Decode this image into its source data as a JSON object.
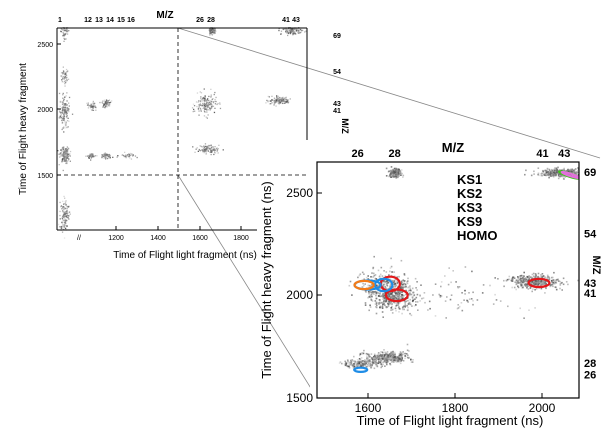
{
  "chart_data": [
    {
      "type": "scatter",
      "panel": "overview",
      "xlabel": "Time of Flight light fragment (ns)",
      "ylabel": "Time of Flight heavy fragment",
      "top_axis_label": "M/Z",
      "right_axis_label": "M/Z",
      "x_ticks": [
        "1200",
        "1400",
        "1600",
        "1800"
      ],
      "x_break": "//",
      "y_ticks": [
        "1500",
        "2000",
        "2500"
      ],
      "top_mz_ticks": [
        "1",
        "12",
        "13",
        "14",
        "15",
        "16",
        "26",
        "28",
        "41",
        "43"
      ],
      "right_mz_ticks": [
        "69",
        "54",
        "43",
        "41"
      ],
      "grid": false,
      "dashed_lines": {
        "x": 1500,
        "y": 1500
      },
      "clusters": [
        {
          "x": 1010,
          "y": 2600,
          "spread": [
            5,
            30
          ],
          "density": 0.3
        },
        {
          "x": 1010,
          "y": 2250,
          "spread": [
            5,
            30
          ],
          "density": 0.3
        },
        {
          "x": 1010,
          "y": 1990,
          "spread": [
            6,
            60
          ],
          "density": 1.0
        },
        {
          "x": 1010,
          "y": 1660,
          "spread": [
            6,
            30
          ],
          "density": 1.0
        },
        {
          "x": 1010,
          "y": 1200,
          "spread": [
            6,
            60
          ],
          "density": 0.8
        },
        {
          "x": 1080,
          "y": 2030,
          "spread": [
            10,
            15
          ],
          "density": 0.3
        },
        {
          "x": 1150,
          "y": 2050,
          "spread": [
            10,
            15
          ],
          "density": 0.4
        },
        {
          "x": 1080,
          "y": 1650,
          "spread": [
            10,
            10
          ],
          "density": 0.3
        },
        {
          "x": 1150,
          "y": 1650,
          "spread": [
            12,
            10
          ],
          "density": 0.3
        },
        {
          "x": 1250,
          "y": 1650,
          "spread": [
            20,
            10
          ],
          "density": 0.2
        },
        {
          "x": 1630,
          "y": 2040,
          "spread": [
            25,
            40
          ],
          "density": 1.0
        },
        {
          "x": 1640,
          "y": 1700,
          "spread": [
            25,
            15
          ],
          "density": 0.7
        },
        {
          "x": 1660,
          "y": 2600,
          "spread": [
            8,
            12
          ],
          "density": 0.7
        },
        {
          "x": 1980,
          "y": 2070,
          "spread": [
            25,
            15
          ],
          "density": 0.9
        },
        {
          "x": 2040,
          "y": 2600,
          "spread": [
            25,
            12
          ],
          "density": 0.8
        }
      ]
    },
    {
      "type": "scatter",
      "panel": "zoomed",
      "xlabel": "Time of Flight light fragment (ns)",
      "ylabel": "Time of Flight heavy fragment (ns)",
      "top_axis_label": "M/Z",
      "right_axis_label": "M/Z",
      "xlim": [
        1500,
        2100
      ],
      "ylim": [
        1500,
        2650
      ],
      "x_ticks": [
        1600,
        1800,
        2000
      ],
      "y_ticks": [
        1500,
        2000,
        2500
      ],
      "top_mz_ticks": [
        {
          "label": "26",
          "x": 1575
        },
        {
          "label": "28",
          "x": 1660
        },
        {
          "label": "41",
          "x": 2000
        },
        {
          "label": "43",
          "x": 2050
        }
      ],
      "right_mz_ticks": [
        {
          "label": "69",
          "y": 2600
        },
        {
          "label": "54",
          "y": 2300
        },
        {
          "label": "43",
          "y": 2060
        },
        {
          "label": "41",
          "y": 2010
        },
        {
          "label": "28",
          "y": 1670
        },
        {
          "label": "26",
          "y": 1615
        }
      ],
      "grid": false,
      "legend": {
        "position": "upper-center",
        "entries": [
          {
            "name": "KS1",
            "color": "#e3181b"
          },
          {
            "name": "KS2",
            "color": "#1e8ce6"
          },
          {
            "name": "KS3",
            "color": "#f47b17"
          },
          {
            "name": "KS9",
            "color": "#3ec41c"
          },
          {
            "name": "HOMO",
            "color": "#e36fdc"
          }
        ]
      },
      "clusters": [
        {
          "x": 1640,
          "y": 2040,
          "spread": [
            28,
            40
          ],
          "density": 1.0
        },
        {
          "x": 1660,
          "y": 1990,
          "spread": [
            25,
            30
          ],
          "density": 0.7
        },
        {
          "x": 1640,
          "y": 1700,
          "spread": [
            25,
            15
          ],
          "density": 0.8
        },
        {
          "x": 1580,
          "y": 1670,
          "spread": [
            20,
            10
          ],
          "density": 0.4
        },
        {
          "x": 1660,
          "y": 2600,
          "spread": [
            6,
            10
          ],
          "density": 0.7
        },
        {
          "x": 1980,
          "y": 2070,
          "spread": [
            28,
            16
          ],
          "density": 1.0
        },
        {
          "x": 2045,
          "y": 2600,
          "spread": [
            28,
            10
          ],
          "density": 0.9
        },
        {
          "x": 1800,
          "y": 2000,
          "spread": [
            80,
            60
          ],
          "density": 0.2
        }
      ],
      "contours": [
        {
          "series": "KS1",
          "cx": 1650,
          "cy": 2055,
          "rx": 22,
          "ry": 35
        },
        {
          "series": "KS1",
          "cx": 1665,
          "cy": 2000,
          "rx": 25,
          "ry": 28
        },
        {
          "series": "KS1",
          "cx": 1992,
          "cy": 2060,
          "rx": 24,
          "ry": 20
        },
        {
          "series": "KS2",
          "cx": 1598,
          "cy": 2050,
          "rx": 30,
          "ry": 22
        },
        {
          "series": "KS2",
          "cx": 1635,
          "cy": 2050,
          "rx": 20,
          "ry": 30
        },
        {
          "series": "KS2",
          "cx": 1582,
          "cy": 1637,
          "rx": 15,
          "ry": 10
        },
        {
          "series": "KS3",
          "cx": 1590,
          "cy": 2050,
          "rx": 22,
          "ry": 20
        },
        {
          "series": "KS9",
          "cx": 2062,
          "cy": 2585,
          "rx": 25,
          "ry": 8,
          "angle": 18
        },
        {
          "series": "HOMO",
          "cx": 2065,
          "cy": 2585,
          "rx": 22,
          "ry": 6,
          "angle": 18
        }
      ]
    }
  ]
}
